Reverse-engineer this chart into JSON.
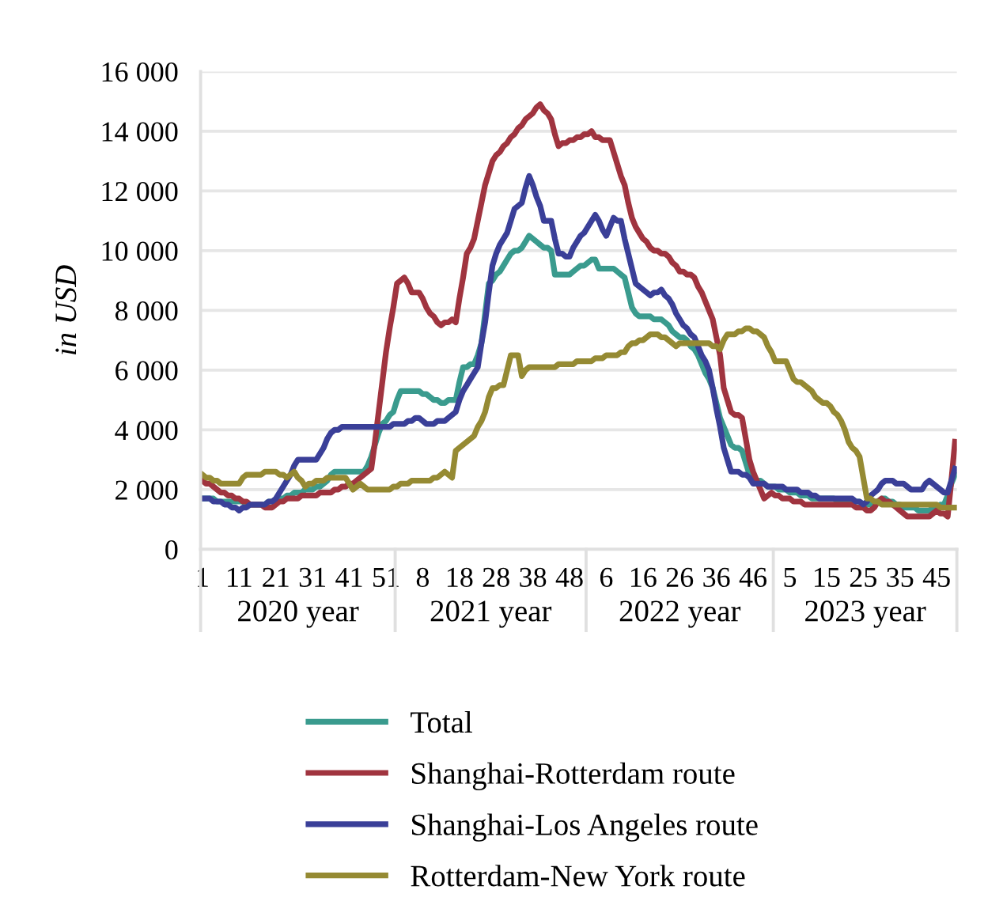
{
  "chart_data": {
    "type": "line",
    "ylabel": "in USD",
    "categories": [
      "1",
      null,
      null,
      null,
      null,
      null,
      null,
      null,
      null,
      null,
      "11",
      null,
      null,
      null,
      null,
      null,
      null,
      null,
      null,
      null,
      "21",
      null,
      null,
      null,
      null,
      null,
      null,
      null,
      null,
      null,
      "31",
      null,
      null,
      null,
      null,
      null,
      null,
      null,
      null,
      null,
      "41",
      null,
      null,
      null,
      null,
      null,
      null,
      null,
      null,
      null,
      "51",
      null,
      null,
      null,
      null,
      null,
      null,
      null,
      null,
      null,
      "8",
      null,
      null,
      null,
      null,
      null,
      null,
      null,
      null,
      null,
      "18",
      null,
      null,
      null,
      null,
      null,
      null,
      null,
      null,
      null,
      "28",
      null,
      null,
      null,
      null,
      null,
      null,
      null,
      null,
      null,
      "38",
      null,
      null,
      null,
      null,
      null,
      null,
      null,
      null,
      null,
      "48",
      null,
      null,
      null,
      null,
      null,
      null,
      null,
      null,
      null,
      "6",
      null,
      null,
      null,
      null,
      null,
      null,
      null,
      null,
      null,
      "16",
      null,
      null,
      null,
      null,
      null,
      null,
      null,
      null,
      null,
      "26",
      null,
      null,
      null,
      null,
      null,
      null,
      null,
      null,
      null,
      "36",
      null,
      null,
      null,
      null,
      null,
      null,
      null,
      null,
      null,
      "46",
      null,
      null,
      null,
      null,
      null,
      null,
      null,
      null,
      null,
      "5",
      null,
      null,
      null,
      null,
      null,
      null,
      null,
      null,
      null,
      "15",
      null,
      null,
      null,
      null,
      null,
      null,
      null,
      null,
      null,
      "25",
      null,
      null,
      null,
      null,
      null,
      null,
      null,
      null,
      null,
      "35",
      null,
      null,
      null,
      null,
      null,
      null,
      null,
      null,
      null,
      "45",
      null,
      null,
      null,
      null,
      null
    ],
    "ylim": [
      0,
      16000
    ],
    "yticks": [
      0,
      {
        "value": 2000,
        "label": "2 000"
      },
      {
        "value": 4000,
        "label": "4 000"
      },
      {
        "value": 6000,
        "label": "6 000"
      },
      {
        "value": 8000,
        "label": "8 000"
      },
      {
        "value": 10000,
        "label": "10 000"
      },
      {
        "value": 12000,
        "label": "12 000"
      },
      {
        "value": 14000,
        "label": "14 000"
      },
      {
        "value": 16000,
        "label": "16 000"
      }
    ],
    "grid": "y",
    "legend": "bottom",
    "marker": "none",
    "line_style": "solid",
    "annotations": [
      "2020 year",
      "2021 year",
      "2022 year",
      "2023 year"
    ],
    "series": [
      {
        "name": "Total",
        "color": "#3a9b8e",
        "values": [
          1700,
          1700,
          1700,
          1700,
          1600,
          1600,
          1600,
          1600,
          1600,
          1600,
          1600,
          1600,
          1500,
          1500,
          1500,
          1500,
          1500,
          1500,
          1600,
          1600,
          1600,
          1700,
          1700,
          1800,
          1800,
          1900,
          1900,
          1900,
          2000,
          2000,
          2000,
          2100,
          2100,
          2200,
          2300,
          2500,
          2600,
          2600,
          2600,
          2600,
          2600,
          2600,
          2600,
          2600,
          2600,
          2800,
          3100,
          3500,
          3900,
          4200,
          4300,
          4500,
          4600,
          5000,
          5300,
          5300,
          5300,
          5300,
          5300,
          5300,
          5200,
          5200,
          5100,
          5000,
          5000,
          4900,
          4900,
          5000,
          5000,
          5000,
          5600,
          6100,
          6100,
          6200,
          6200,
          6500,
          6900,
          7900,
          8900,
          9000,
          9200,
          9300,
          9500,
          9700,
          9900,
          10000,
          10000,
          10100,
          10300,
          10500,
          10400,
          10300,
          10200,
          10100,
          10100,
          10000,
          9200,
          9200,
          9200,
          9200,
          9200,
          9300,
          9400,
          9500,
          9500,
          9600,
          9700,
          9700,
          9400,
          9400,
          9400,
          9400,
          9400,
          9300,
          9200,
          9100,
          8600,
          8100,
          7900,
          7800,
          7800,
          7800,
          7800,
          7700,
          7700,
          7700,
          7600,
          7500,
          7300,
          7200,
          7100,
          7100,
          7000,
          6800,
          6700,
          6500,
          6200,
          5900,
          5700,
          5400,
          4900,
          4400,
          4100,
          3800,
          3500,
          3400,
          3400,
          3300,
          2900,
          2500,
          2400,
          2300,
          2300,
          2200,
          2100,
          2100,
          2100,
          2000,
          2000,
          2000,
          1900,
          1900,
          1900,
          1800,
          1800,
          1800,
          1700,
          1700,
          1700,
          1700,
          1700,
          1700,
          1700,
          1600,
          1600,
          1600,
          1600,
          1600,
          1600,
          1600,
          1500,
          1500,
          1500,
          1600,
          1600,
          1700,
          1700,
          1600,
          1600,
          1500,
          1500,
          1400,
          1400,
          1400,
          1400,
          1300,
          1300,
          1300,
          1300,
          1400,
          1400,
          1500,
          1500,
          1800,
          2200,
          2500
        ]
      },
      {
        "name": "Shanghai-Rotterdam route",
        "color": "#a0343f",
        "values": [
          2300,
          2200,
          2200,
          2100,
          2000,
          1900,
          1900,
          1800,
          1800,
          1700,
          1700,
          1600,
          1600,
          1500,
          1500,
          1500,
          1500,
          1400,
          1400,
          1400,
          1500,
          1600,
          1600,
          1700,
          1700,
          1700,
          1700,
          1800,
          1800,
          1800,
          1800,
          1800,
          1900,
          1900,
          1900,
          1900,
          2000,
          2000,
          2100,
          2100,
          2200,
          2200,
          2300,
          2400,
          2500,
          2600,
          2700,
          3600,
          4600,
          5600,
          6600,
          7400,
          8100,
          8900,
          9000,
          9100,
          8900,
          8600,
          8600,
          8600,
          8400,
          8100,
          7900,
          7800,
          7600,
          7500,
          7600,
          7600,
          7700,
          7600,
          8400,
          9100,
          9900,
          10100,
          10400,
          11000,
          11600,
          12200,
          12600,
          13000,
          13200,
          13300,
          13500,
          13600,
          13800,
          13900,
          14100,
          14200,
          14400,
          14500,
          14600,
          14800,
          14900,
          14700,
          14600,
          14400,
          13900,
          13500,
          13600,
          13600,
          13700,
          13700,
          13800,
          13800,
          13900,
          13900,
          14000,
          13800,
          13800,
          13700,
          13700,
          13700,
          13300,
          12900,
          12500,
          12200,
          11600,
          11100,
          10800,
          10600,
          10400,
          10300,
          10100,
          10000,
          10000,
          9900,
          9900,
          9800,
          9600,
          9500,
          9300,
          9300,
          9200,
          9200,
          9100,
          8800,
          8600,
          8300,
          8000,
          7700,
          7100,
          6500,
          5400,
          5000,
          4600,
          4500,
          4500,
          4400,
          3700,
          3000,
          2600,
          2300,
          2000,
          1700,
          1800,
          1900,
          1800,
          1800,
          1700,
          1700,
          1700,
          1600,
          1600,
          1600,
          1500,
          1500,
          1500,
          1500,
          1500,
          1500,
          1500,
          1500,
          1500,
          1500,
          1500,
          1500,
          1500,
          1500,
          1400,
          1400,
          1400,
          1300,
          1300,
          1400,
          1600,
          1700,
          1600,
          1600,
          1500,
          1400,
          1300,
          1200,
          1100,
          1100,
          1100,
          1100,
          1100,
          1100,
          1100,
          1200,
          1300,
          1200,
          1200,
          1100,
          2300,
          3600
        ]
      },
      {
        "name": "Shanghai-Los Angeles route",
        "color": "#3a3f98",
        "values": [
          1700,
          1700,
          1700,
          1600,
          1600,
          1600,
          1500,
          1500,
          1400,
          1400,
          1300,
          1400,
          1400,
          1500,
          1500,
          1500,
          1500,
          1500,
          1600,
          1600,
          1700,
          1900,
          2100,
          2300,
          2500,
          2800,
          3000,
          3000,
          3000,
          3000,
          3000,
          3000,
          3200,
          3400,
          3700,
          3900,
          4000,
          4000,
          4100,
          4100,
          4100,
          4100,
          4100,
          4100,
          4100,
          4100,
          4100,
          4100,
          4100,
          4100,
          4100,
          4100,
          4200,
          4200,
          4200,
          4200,
          4300,
          4300,
          4400,
          4400,
          4300,
          4200,
          4200,
          4200,
          4300,
          4300,
          4300,
          4400,
          4500,
          4600,
          5000,
          5300,
          5500,
          5700,
          5900,
          6100,
          6900,
          7600,
          8600,
          9500,
          9900,
          10200,
          10400,
          10600,
          11000,
          11400,
          11500,
          11600,
          12100,
          12500,
          12200,
          11800,
          11500,
          11000,
          11000,
          11000,
          10400,
          9900,
          9900,
          9800,
          9800,
          10100,
          10300,
          10500,
          10600,
          10800,
          11000,
          11200,
          11000,
          10700,
          10500,
          10800,
          11100,
          11000,
          11000,
          10400,
          9900,
          9400,
          8900,
          8800,
          8700,
          8600,
          8500,
          8600,
          8600,
          8700,
          8500,
          8400,
          8200,
          7900,
          7700,
          7500,
          7400,
          7200,
          7100,
          6800,
          6500,
          6300,
          6000,
          5400,
          4700,
          4100,
          3400,
          3000,
          2600,
          2600,
          2600,
          2500,
          2500,
          2400,
          2200,
          2200,
          2200,
          2200,
          2100,
          2100,
          2100,
          2100,
          2100,
          2000,
          2000,
          2000,
          2000,
          1900,
          1900,
          1900,
          1800,
          1800,
          1700,
          1700,
          1700,
          1700,
          1700,
          1700,
          1700,
          1700,
          1700,
          1700,
          1600,
          1600,
          1500,
          1600,
          1800,
          1900,
          2000,
          2200,
          2300,
          2300,
          2300,
          2200,
          2200,
          2200,
          2100,
          2000,
          2000,
          2000,
          2000,
          2200,
          2300,
          2200,
          2100,
          2000,
          1900,
          1900,
          2300,
          2700
        ]
      },
      {
        "name": "Rotterdam-New York route",
        "color": "#958a33",
        "values": [
          2500,
          2400,
          2400,
          2300,
          2300,
          2200,
          2200,
          2200,
          2200,
          2200,
          2200,
          2400,
          2500,
          2500,
          2500,
          2500,
          2500,
          2600,
          2600,
          2600,
          2600,
          2500,
          2500,
          2400,
          2500,
          2600,
          2400,
          2300,
          2100,
          2200,
          2200,
          2300,
          2300,
          2300,
          2400,
          2400,
          2400,
          2400,
          2400,
          2400,
          2200,
          2000,
          2100,
          2200,
          2100,
          2000,
          2000,
          2000,
          2000,
          2000,
          2000,
          2000,
          2100,
          2100,
          2200,
          2200,
          2200,
          2300,
          2300,
          2300,
          2300,
          2300,
          2300,
          2400,
          2400,
          2500,
          2600,
          2500,
          2400,
          3300,
          3400,
          3500,
          3600,
          3700,
          3800,
          4100,
          4300,
          4600,
          5100,
          5400,
          5400,
          5500,
          5500,
          6000,
          6500,
          6500,
          6500,
          5800,
          6000,
          6100,
          6100,
          6100,
          6100,
          6100,
          6100,
          6100,
          6100,
          6200,
          6200,
          6200,
          6200,
          6200,
          6300,
          6300,
          6300,
          6300,
          6300,
          6400,
          6400,
          6400,
          6500,
          6500,
          6500,
          6500,
          6600,
          6600,
          6800,
          6900,
          6900,
          7000,
          7000,
          7100,
          7200,
          7200,
          7200,
          7100,
          7100,
          7000,
          6900,
          6800,
          6900,
          6900,
          6900,
          6900,
          6900,
          6900,
          6900,
          6900,
          6900,
          6800,
          6800,
          6700,
          7000,
          7200,
          7200,
          7200,
          7300,
          7300,
          7400,
          7400,
          7300,
          7300,
          7200,
          7100,
          6800,
          6600,
          6300,
          6300,
          6300,
          6300,
          6000,
          5700,
          5600,
          5600,
          5500,
          5400,
          5300,
          5100,
          5000,
          4900,
          4900,
          4800,
          4600,
          4500,
          4300,
          4000,
          3600,
          3400,
          3300,
          3100,
          2400,
          1700,
          1700,
          1600,
          1600,
          1500,
          1500,
          1500,
          1500,
          1500,
          1500,
          1500,
          1500,
          1500,
          1500,
          1500,
          1500,
          1500,
          1500,
          1500,
          1500,
          1400,
          1400,
          1400,
          1400,
          1400
        ]
      }
    ]
  }
}
